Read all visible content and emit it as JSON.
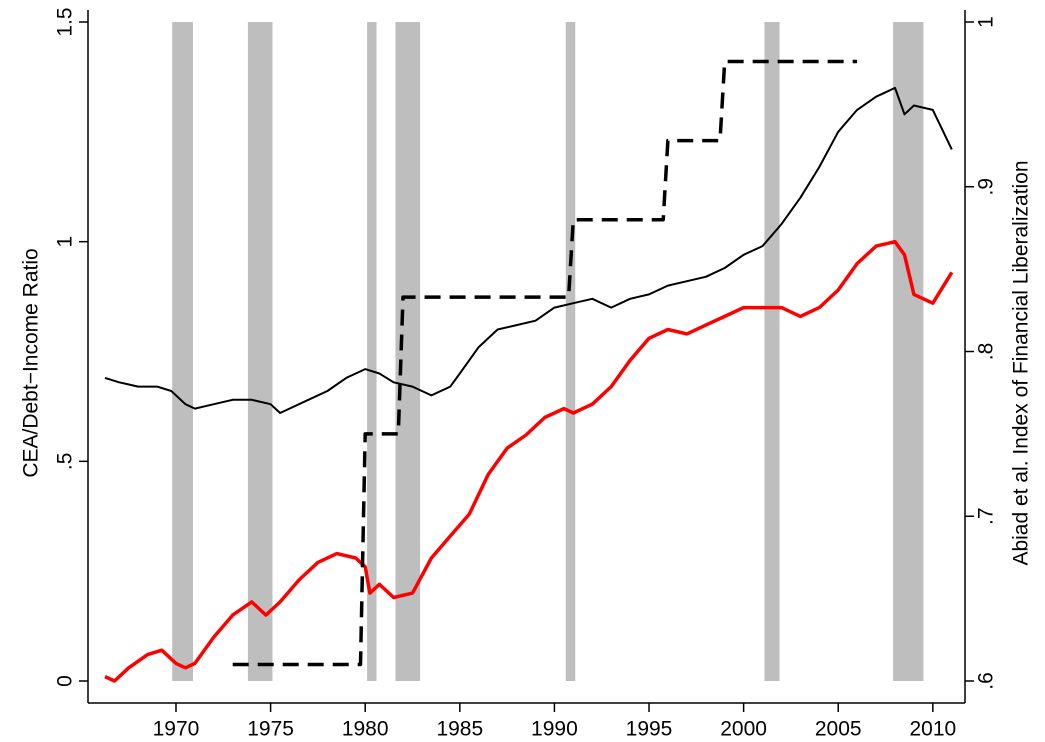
{
  "chart_data": {
    "type": "line",
    "ylabel": "CEA/Debt−Income Ratio",
    "y2label": "Abiad et al. Index of Financial Liberalization",
    "xlim": [
      1965.35,
      2011.7
    ],
    "xticks": [
      1970,
      1975,
      1980,
      1985,
      1990,
      1995,
      2000,
      2005,
      2010
    ],
    "ylim": [
      0,
      1.5
    ],
    "yticks": [
      0,
      {
        "value": 0.5,
        "label": ".5"
      },
      1,
      1.5
    ],
    "y2lim": [
      0.6,
      1
    ],
    "y2ticks": [
      {
        "value": 0.6,
        "label": ".6"
      },
      {
        "value": 0.7,
        "label": ".7"
      },
      {
        "value": 0.8,
        "label": ".8"
      },
      {
        "value": 0.9,
        "label": ".9"
      },
      1
    ],
    "shaded_periods": [
      [
        1969.8,
        1970.9
      ],
      [
        1973.8,
        1975.1
      ],
      [
        1980.1,
        1980.6
      ],
      [
        1981.6,
        1982.9
      ],
      [
        1990.6,
        1991.1
      ],
      [
        2001.1,
        2001.9
      ],
      [
        2007.9,
        2009.5
      ]
    ],
    "shade_color": "#bebebe",
    "series": [
      {
        "color": "#000000",
        "style": "solid",
        "width": 2,
        "x": [
          1966.25,
          1967,
          1968,
          1969,
          1969.75,
          1970.5,
          1971,
          1972,
          1973,
          1974,
          1975,
          1975.5,
          1976,
          1977,
          1978,
          1979,
          1980,
          1980.75,
          1981.5,
          1982.5,
          1983.5,
          1984.5,
          1985,
          1986,
          1987,
          1988,
          1989,
          1990,
          1991,
          1992,
          1993,
          1994,
          1995,
          1996,
          1997,
          1998,
          1999,
          2000,
          2001,
          2002,
          2003,
          2004,
          2005,
          2006,
          2007,
          2008,
          2008.5,
          2009,
          2010,
          2011
        ],
        "values": [
          0.69,
          0.68,
          0.67,
          0.67,
          0.66,
          0.63,
          0.62,
          0.63,
          0.64,
          0.64,
          0.63,
          0.61,
          0.62,
          0.64,
          0.66,
          0.69,
          0.71,
          0.7,
          0.68,
          0.67,
          0.65,
          0.67,
          0.7,
          0.76,
          0.8,
          0.81,
          0.82,
          0.85,
          0.86,
          0.87,
          0.85,
          0.87,
          0.88,
          0.9,
          0.91,
          0.92,
          0.94,
          0.97,
          0.99,
          1.04,
          1.1,
          1.17,
          1.25,
          1.3,
          1.33,
          1.35,
          1.29,
          1.31,
          1.3,
          1.21
        ]
      },
      {
        "color": "#ff0000",
        "style": "solid",
        "width": 3.5,
        "x": [
          1966.25,
          1966.75,
          1967.5,
          1968.5,
          1969.25,
          1970,
          1970.5,
          1971,
          1972,
          1973,
          1974,
          1974.75,
          1975.5,
          1976.5,
          1977.5,
          1978.5,
          1979.5,
          1980,
          1980.25,
          1980.75,
          1981.5,
          1982.5,
          1983.5,
          1984.5,
          1985.5,
          1986.5,
          1987.5,
          1988.5,
          1989.5,
          1990.5,
          1991,
          1992,
          1993,
          1994,
          1995,
          1996,
          1997,
          1998,
          1999,
          2000,
          2001,
          2002,
          2003,
          2004,
          2005,
          2006,
          2007,
          2008,
          2008.5,
          2009,
          2010,
          2011
        ],
        "values": [
          0.01,
          0.0,
          0.03,
          0.06,
          0.07,
          0.04,
          0.03,
          0.04,
          0.1,
          0.15,
          0.18,
          0.15,
          0.18,
          0.23,
          0.27,
          0.29,
          0.28,
          0.26,
          0.2,
          0.22,
          0.19,
          0.2,
          0.28,
          0.33,
          0.38,
          0.47,
          0.53,
          0.56,
          0.6,
          0.62,
          0.61,
          0.63,
          0.67,
          0.73,
          0.78,
          0.8,
          0.79,
          0.81,
          0.83,
          0.85,
          0.85,
          0.85,
          0.83,
          0.85,
          0.89,
          0.95,
          0.99,
          1.0,
          0.97,
          0.88,
          0.86,
          0.93
        ]
      },
      {
        "color": "#000000",
        "style": "dashed",
        "width": 3.5,
        "axis": "y2",
        "x": [
          1973,
          1979.75,
          1980,
          1981.75,
          1982,
          1990.75,
          1991,
          1995.75,
          1996,
          1998.75,
          1999,
          2006
        ],
        "values": [
          0.61,
          0.61,
          0.75,
          0.75,
          0.833,
          0.833,
          0.88,
          0.88,
          0.928,
          0.928,
          0.976,
          0.976
        ]
      }
    ]
  }
}
